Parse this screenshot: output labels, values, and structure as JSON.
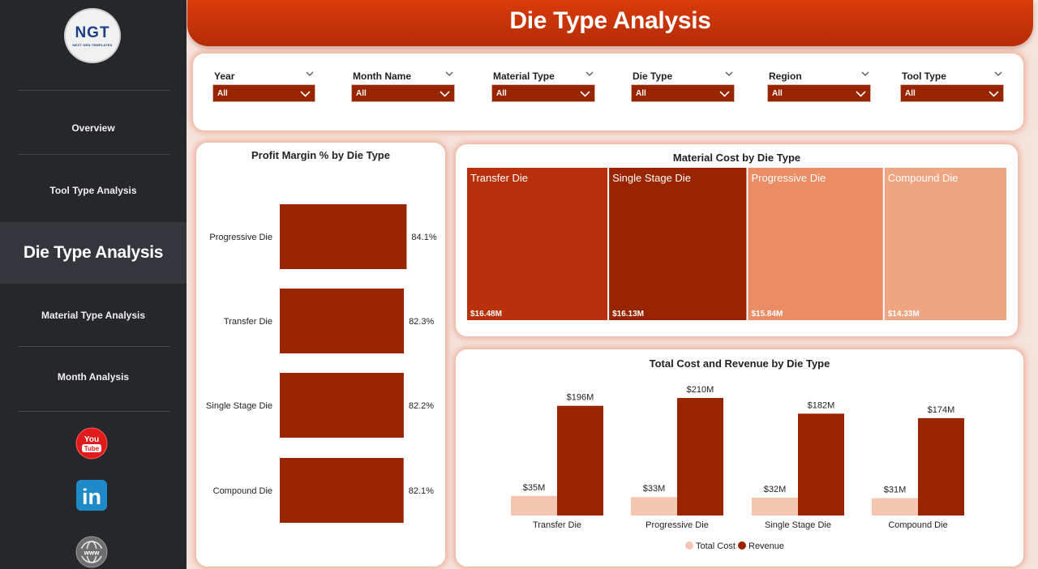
{
  "app": {
    "logo_text": "NGT",
    "logo_subtext": "NEXT GEN TEMPLATES",
    "title": "Die Type Analysis"
  },
  "sidebar": {
    "items": [
      {
        "label": "Overview",
        "active": false
      },
      {
        "label": "Tool Type Analysis",
        "active": false
      },
      {
        "label": "Die Type Analysis",
        "active": true
      },
      {
        "label": "Material Type Analysis",
        "active": false
      },
      {
        "label": "Month Analysis",
        "active": false
      }
    ],
    "social": [
      {
        "icon": "youtube-icon",
        "line1": "You",
        "line2": "Tube"
      },
      {
        "icon": "linkedin-icon",
        "text": "in"
      },
      {
        "icon": "globe-icon",
        "text": "www"
      }
    ]
  },
  "filters": [
    {
      "label": "Year",
      "value": "All"
    },
    {
      "label": "Month Name",
      "value": "All"
    },
    {
      "label": "Material Type",
      "value": "All"
    },
    {
      "label": "Die Type",
      "value": "All"
    },
    {
      "label": "Region",
      "value": "All"
    },
    {
      "label": "Tool Type",
      "value": "All"
    }
  ],
  "colors": {
    "accent": "#992400",
    "header": "#c9340a",
    "sidebar": "#25272b",
    "light": "#f4c6b2"
  },
  "chart_data": [
    {
      "type": "bar",
      "orientation": "horizontal",
      "title": "Profit Margin % by Die Type",
      "categories": [
        "Progressive Die",
        "Transfer Die",
        "Single Stage Die",
        "Compound Die"
      ],
      "values": [
        84.1,
        82.3,
        82.2,
        82.1
      ],
      "labels": [
        "84.1%",
        "82.3%",
        "82.2%",
        "82.1%"
      ],
      "xlim": [
        0,
        100
      ],
      "color": "#992400"
    },
    {
      "type": "treemap",
      "title": "Material Cost by Die Type",
      "categories": [
        "Transfer Die",
        "Single Stage Die",
        "Progressive Die",
        "Compound Die"
      ],
      "values": [
        16.48,
        16.13,
        15.84,
        14.33
      ],
      "labels": [
        "$16.48M",
        "$16.13M",
        "$15.84M",
        "$14.33M"
      ],
      "colors": [
        "#b8310a",
        "#992400",
        "#ea8c64",
        "#f0a582"
      ]
    },
    {
      "type": "bar",
      "title": "Total Cost and Revenue by Die Type",
      "categories": [
        "Transfer Die",
        "Progressive Die",
        "Single Stage Die",
        "Compound Die"
      ],
      "series": [
        {
          "name": "Total Cost",
          "values": [
            35,
            33,
            32,
            31
          ],
          "labels": [
            "$35M",
            "$33M",
            "$32M",
            "$31M"
          ],
          "color": "#f4c6b2"
        },
        {
          "name": "Revenue",
          "values": [
            196,
            210,
            182,
            174
          ],
          "labels": [
            "$196M",
            "$210M",
            "$182M",
            "$174M"
          ],
          "color": "#992400"
        }
      ],
      "ylim": [
        0,
        210
      ],
      "legend": "bottom"
    }
  ]
}
